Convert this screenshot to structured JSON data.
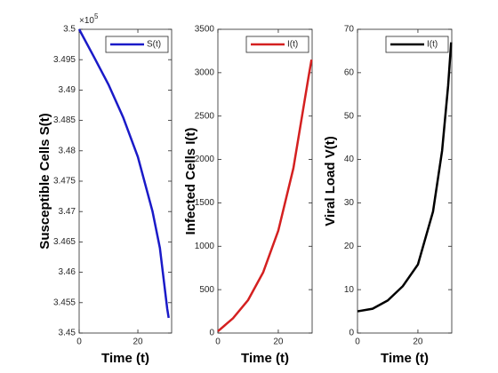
{
  "chart_data": [
    {
      "type": "line",
      "xlabel": "Time (t)",
      "ylabel": "Susceptible Cells S(t)",
      "y_multiplier": "×10",
      "y_exponent": "5",
      "x": [
        0,
        5,
        10,
        15,
        20,
        25,
        27.5,
        30,
        30.5
      ],
      "series": [
        {
          "name": "S(t)",
          "color": "#1a1ac8",
          "values": [
            350000,
            349550,
            349090,
            348550,
            347900,
            347000,
            346400,
            345400,
            345250
          ]
        }
      ],
      "xlim": [
        0,
        31.5
      ],
      "xticks": [
        0,
        20
      ],
      "ylim": [
        345000,
        350000
      ],
      "yticks": [
        {
          "value": 345000,
          "label": "3.45"
        },
        {
          "value": 345500,
          "label": "3.455"
        },
        {
          "value": 346000,
          "label": "3.46"
        },
        {
          "value": 346500,
          "label": "3.465"
        },
        {
          "value": 347000,
          "label": "3.47"
        },
        {
          "value": 347500,
          "label": "3.475"
        },
        {
          "value": 348000,
          "label": "3.48"
        },
        {
          "value": 348500,
          "label": "3.485"
        },
        {
          "value": 349000,
          "label": "3.49"
        },
        {
          "value": 349500,
          "label": "3.495"
        },
        {
          "value": 350000,
          "label": "3.5"
        }
      ],
      "legend": "upper right"
    },
    {
      "type": "line",
      "xlabel": "Time (t)",
      "ylabel": "Infected Cells I(t)",
      "x": [
        0,
        5,
        10,
        15,
        20,
        25,
        30,
        31
      ],
      "series": [
        {
          "name": "I(t)",
          "color": "#d42020",
          "values": [
            20,
            170,
            380,
            700,
            1180,
            1900,
            2950,
            3150
          ]
        }
      ],
      "xlim": [
        0,
        31.2
      ],
      "xticks": [
        0,
        20
      ],
      "ylim": [
        0,
        3500
      ],
      "yticks": [
        0,
        500,
        1000,
        1500,
        2000,
        2500,
        3000,
        3500
      ],
      "legend": "upper right"
    },
    {
      "type": "line",
      "xlabel": "Time (t)",
      "ylabel": "Viral Load V(t)",
      "x": [
        0,
        5,
        10,
        15,
        20,
        25,
        28,
        30,
        31
      ],
      "series": [
        {
          "name": "I(t)",
          "color": "#000000",
          "values": [
            5,
            5.6,
            7.5,
            10.8,
            15.8,
            28,
            42,
            57,
            67
          ]
        }
      ],
      "xlim": [
        0,
        31.2
      ],
      "xticks": [
        0,
        20
      ],
      "ylim": [
        0,
        70
      ],
      "yticks": [
        0,
        10,
        20,
        30,
        40,
        50,
        60,
        70
      ],
      "legend": "upper right"
    }
  ]
}
